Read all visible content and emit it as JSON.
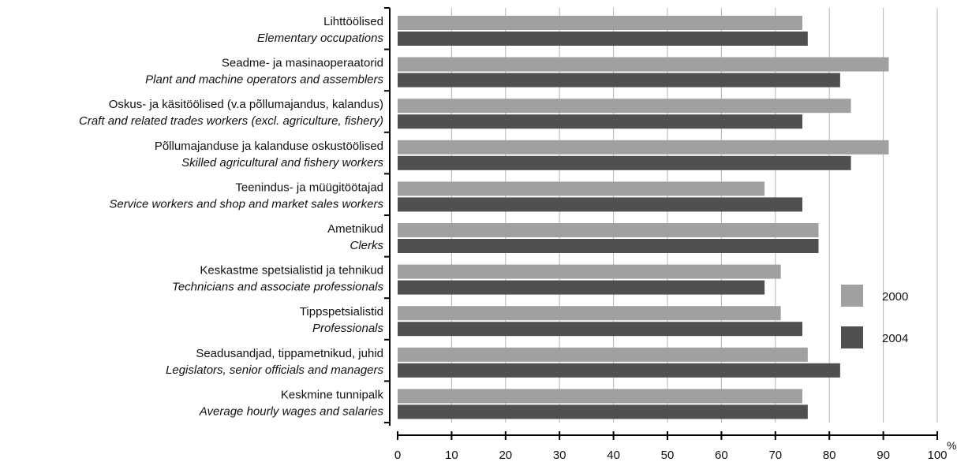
{
  "chart_data": {
    "type": "bar",
    "orientation": "horizontal",
    "categories": [
      {
        "et": "Lihttöölised",
        "en": "Elementary occupations"
      },
      {
        "et": "Seadme- ja masinaoperaatorid",
        "en": "Plant and machine operators and assemblers"
      },
      {
        "et": "Oskus- ja käsitöölised (v.a põllumajandus, kalandus)",
        "en": "Craft and related trades workers (excl. agriculture, fishery)"
      },
      {
        "et": "Põllumajanduse ja kalanduse oskustöölised",
        "en": "Skilled agricultural and fishery workers"
      },
      {
        "et": "Teenindus- ja müügitöötajad",
        "en": "Service workers and shop and market sales workers"
      },
      {
        "et": "Ametnikud",
        "en": "Clerks"
      },
      {
        "et": "Keskastme spetsialistid ja tehnikud",
        "en": "Technicians and associate professionals"
      },
      {
        "et": "Tippspetsialistid",
        "en": "Professionals"
      },
      {
        "et": "Seadusandjad, tippametnikud, juhid",
        "en": "Legislators, senior officials and managers"
      },
      {
        "et": "Keskmine tunnipalk",
        "en": "Average hourly wages and salaries"
      }
    ],
    "series": [
      {
        "name": "2000",
        "color": "#a0a0a0",
        "values": [
          75,
          91,
          84,
          91,
          68,
          78,
          71,
          71,
          76,
          75
        ]
      },
      {
        "name": "2004",
        "color": "#505050",
        "values": [
          76,
          82,
          75,
          84,
          75,
          78,
          68,
          75,
          82,
          76
        ]
      }
    ],
    "xlim": [
      0,
      100
    ],
    "xticks": [
      0,
      10,
      20,
      30,
      40,
      50,
      60,
      70,
      80,
      90,
      100
    ],
    "x_unit": "%",
    "grid": "vertical",
    "legend": "right"
  }
}
